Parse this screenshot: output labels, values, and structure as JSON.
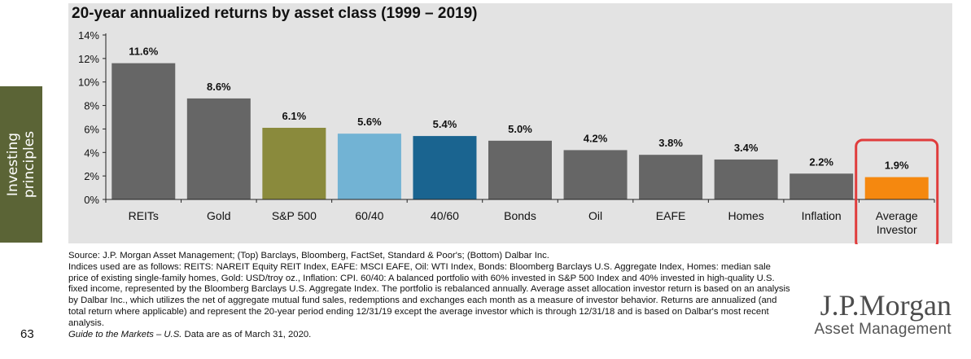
{
  "side_tab": {
    "line1": "Investing",
    "line2": "principles"
  },
  "chart_data": {
    "type": "bar",
    "title": "20-year annualized returns by asset class (1999 – 2019)",
    "categories": [
      "REITs",
      "Gold",
      "S&P 500",
      "60/40",
      "40/60",
      "Bonds",
      "Oil",
      "EAFE",
      "Homes",
      "Inflation",
      "Average Investor"
    ],
    "values": [
      11.6,
      8.6,
      6.1,
      5.6,
      5.4,
      5.0,
      4.2,
      3.8,
      3.4,
      2.2,
      1.9
    ],
    "value_labels": [
      "11.6%",
      "8.6%",
      "6.1%",
      "5.6%",
      "5.4%",
      "5.0%",
      "4.2%",
      "3.8%",
      "3.4%",
      "2.2%",
      "1.9%"
    ],
    "colors": [
      "#666666",
      "#666666",
      "#8a8a3c",
      "#72b3d4",
      "#1a6490",
      "#666666",
      "#666666",
      "#666666",
      "#666666",
      "#666666",
      "#f5880f"
    ],
    "highlight_color": "#e03c3c",
    "highlight_index": 10,
    "ylim": [
      0,
      14
    ],
    "yticks": [
      0,
      2,
      4,
      6,
      8,
      10,
      12,
      14
    ],
    "ytick_labels": [
      "0%",
      "2%",
      "4%",
      "6%",
      "8%",
      "10%",
      "12%",
      "14%"
    ],
    "xlabel": "",
    "ylabel": ""
  },
  "footnote": {
    "source": "Source: J.P. Morgan Asset Management; (Top) Barclays, Bloomberg, FactSet, Standard & Poor's; (Bottom) Dalbar Inc.",
    "indices": "Indices used are as follows: REITS: NAREIT Equity REIT Index, EAFE: MSCI EAFE, Oil: WTI Index, Bonds: Bloomberg Barclays U.S. Aggregate Index, Homes: median sale price of existing single-family homes, Gold: USD/troy oz., Inflation: CPI. 60/40: A balanced portfolio with 60% invested in S&P 500 Index and 40% invested in high-quality U.S. fixed income, represented by the Bloomberg Barclays U.S. Aggregate Index. The portfolio is rebalanced annually. Average asset allocation investor return is based on an analysis by Dalbar Inc., which utilizes the net of aggregate mutual fund sales, redemptions and exchanges each month as a measure of investor behavior. Returns are annualized (and total return where applicable) and represent the 20-year period ending 12/31/19 except the average investor which is through 12/31/18 and is based on Dalbar's most recent analysis.",
    "guide_title": "Guide to the Markets – U.S.",
    "guide_rest": " Data are as of March 31, 2020."
  },
  "page_number": "63",
  "logo": {
    "main": "J.P.Morgan",
    "sub": "Asset Management"
  }
}
